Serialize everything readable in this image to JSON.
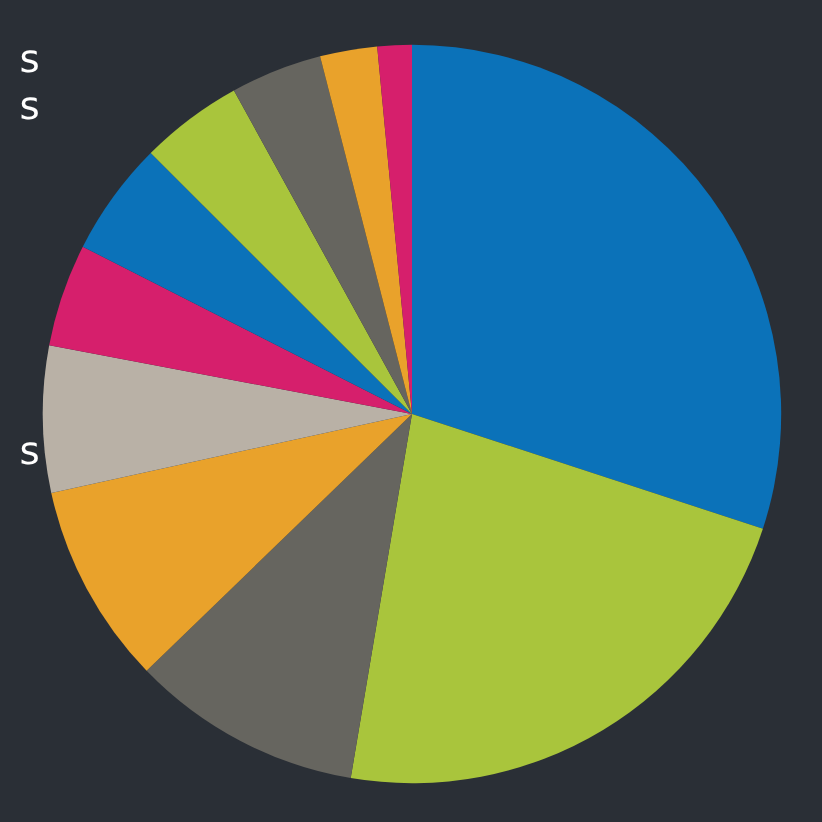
{
  "chart_data": {
    "type": "pie",
    "categories": [
      null,
      null,
      null,
      null,
      null,
      null,
      null,
      null,
      null,
      null,
      null
    ],
    "values": [
      30,
      22.6,
      10.1,
      8.8,
      6.4,
      4.5,
      5,
      4.5,
      4,
      2.5,
      1.5
    ],
    "colors": [
      "#0b72b9",
      "#a9c53c",
      "#66655f",
      "#e9a22b",
      "#b9b1a6",
      "#d61f6c",
      "#0b72b9",
      "#a9c53c",
      "#66655f",
      "#e9a22b",
      "#d61f6c"
    ],
    "annotations": [
      "s",
      "s",
      "s"
    ]
  }
}
